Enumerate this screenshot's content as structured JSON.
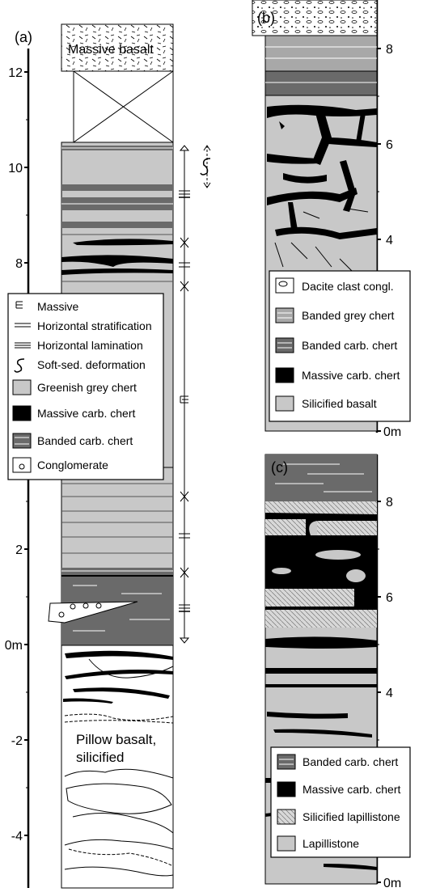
{
  "panels": {
    "a": {
      "label": "(a)",
      "axis_ticks": [
        "12",
        "10",
        "8",
        "2",
        "0m",
        "-2",
        "-4"
      ],
      "unit_labels": {
        "massive_basalt": "Massive basalt",
        "pillow_basalt_line1": "Pillow basalt,",
        "pillow_basalt_line2": "silicified"
      },
      "legend": [
        {
          "symbol": "massive-symbol",
          "label": "Massive"
        },
        {
          "symbol": "horizontal-stratification-symbol",
          "label": "Horizontal stratification"
        },
        {
          "symbol": "horizontal-lamination-symbol",
          "label": "Horizontal lamination"
        },
        {
          "symbol": "soft-sed-deformation-symbol",
          "label": "Soft-sed. deformation"
        },
        {
          "symbol": "greenish-grey-chert-swatch",
          "label": "Greenish grey chert",
          "color": "#c8c8c8"
        },
        {
          "symbol": "massive-carb-chert-swatch",
          "label": "Massive  carb. chert",
          "color": "#000000"
        },
        {
          "symbol": "banded-carb-chert-swatch",
          "label": "Banded carb. chert",
          "color": "#6a6a6a"
        },
        {
          "symbol": "conglomerate-swatch",
          "label": "Conglomerate",
          "color": "#ffffff"
        }
      ]
    },
    "b": {
      "label": "(b)",
      "axis_ticks": [
        "8",
        "6",
        "4",
        "0m"
      ],
      "legend": [
        {
          "symbol": "dacite-clast-swatch",
          "label": "Dacite clast congl.",
          "color": "#ffffff"
        },
        {
          "symbol": "banded-grey-chert-swatch",
          "label": "Banded grey chert",
          "color": "#a8a8a8"
        },
        {
          "symbol": "banded-carb-chert-swatch",
          "label": "Banded carb. chert",
          "color": "#6a6a6a"
        },
        {
          "symbol": "massive-carb-chert-swatch",
          "label": "Massive carb. chert",
          "color": "#000000"
        },
        {
          "symbol": "silicified-basalt-swatch",
          "label": "Silicified basalt",
          "color": "#c8c8c8"
        }
      ]
    },
    "c": {
      "label": "(c)",
      "axis_ticks": [
        "8",
        "6",
        "4",
        "0m"
      ],
      "legend": [
        {
          "symbol": "banded-carb-chert-swatch",
          "label": "Banded carb. chert",
          "color": "#6a6a6a"
        },
        {
          "symbol": "massive-carb-chert-swatch",
          "label": "Massive carb. chert",
          "color": "#000000"
        },
        {
          "symbol": "silicified-lapillistone-swatch",
          "label": "Silicified lapillistone",
          "color": "#d8d8d8"
        },
        {
          "symbol": "lapillistone-swatch",
          "label": "Lapillistone",
          "color": "#c8c8c8"
        }
      ]
    }
  },
  "colors": {
    "light_grey": "#c8c8c8",
    "mid_grey": "#a8a8a8",
    "dark_grey": "#6a6a6a",
    "black": "#000000"
  }
}
